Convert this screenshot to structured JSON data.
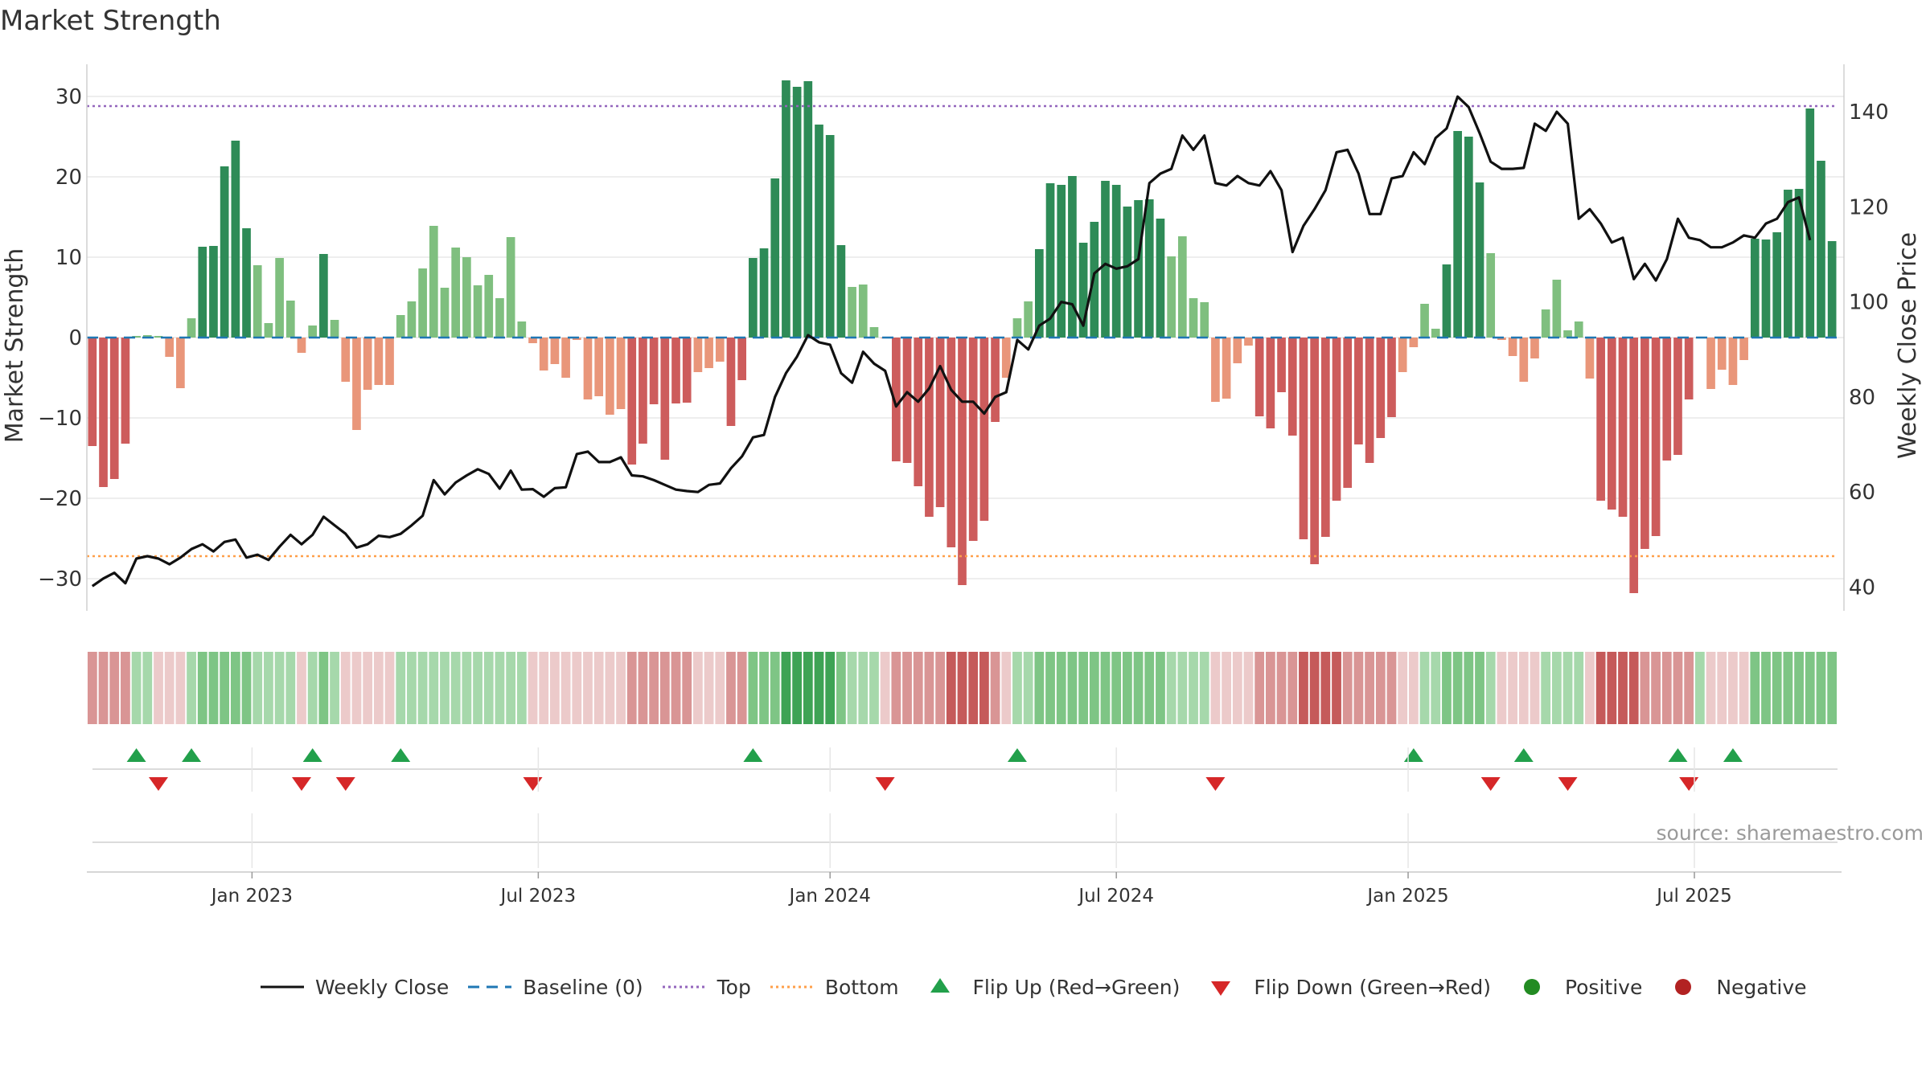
{
  "chart_data": {
    "type": "bar",
    "title": "Market Strength",
    "ylabel_left": "Market Strength",
    "ylabel_right": "Weekly Close Price",
    "ylim_left": [
      -34,
      34
    ],
    "ylim_right": [
      35,
      150
    ],
    "yticks_left": [
      -30,
      -20,
      -10,
      0,
      10,
      20,
      30
    ],
    "yticks_left_labels": [
      "−30",
      "−20",
      "−10",
      "0",
      "10",
      "20",
      "30"
    ],
    "yticks_right": [
      40,
      60,
      80,
      100,
      120,
      140
    ],
    "yticks_right_labels": [
      "40",
      "60",
      "80",
      "100",
      "120",
      "140"
    ],
    "top_level": 28.8,
    "bottom_level": -27.2,
    "baseline": 0,
    "x_ticks": [
      {
        "index": 14.5,
        "label": "Jan 2023"
      },
      {
        "index": 40.5,
        "label": "Jul 2023"
      },
      {
        "index": 67,
        "label": "Jan 2024"
      },
      {
        "index": 93,
        "label": "Jul 2024"
      },
      {
        "index": 119.5,
        "label": "Jan 2025"
      },
      {
        "index": 145.5,
        "label": "Jul 2025"
      }
    ],
    "strength": [
      -13.5,
      -18.6,
      -17.6,
      -13.2,
      0.2,
      0.3,
      0.2,
      -2.4,
      -6.3,
      2.4,
      11.3,
      11.4,
      21.3,
      24.5,
      13.6,
      9.0,
      1.8,
      9.9,
      4.6,
      -1.9,
      1.5,
      10.4,
      2.2,
      -5.5,
      -11.5,
      -6.5,
      -5.9,
      -5.9,
      2.8,
      4.5,
      8.6,
      13.9,
      6.2,
      11.2,
      10.0,
      6.5,
      7.8,
      4.9,
      12.5,
      2.0,
      -0.7,
      -4.1,
      -3.3,
      -5.0,
      -0.3,
      -7.7,
      -7.3,
      -9.6,
      -8.9,
      -15.8,
      -13.2,
      -8.3,
      -15.2,
      -8.2,
      -8.1,
      -4.3,
      -3.8,
      -3.0,
      -11.0,
      -5.3,
      9.9,
      11.1,
      19.8,
      32.0,
      31.2,
      31.9,
      26.5,
      25.2,
      11.5,
      6.3,
      6.6,
      1.3,
      -0.1,
      -15.4,
      -15.6,
      -18.5,
      -22.3,
      -21.1,
      -26.1,
      -30.8,
      -25.3,
      -22.8,
      -10.5,
      -5.0,
      2.4,
      4.5,
      11.0,
      19.2,
      19.0,
      20.1,
      11.8,
      14.4,
      19.5,
      19.0,
      16.3,
      17.1,
      17.2,
      14.8,
      10.1,
      12.6,
      4.9,
      4.4,
      -8.0,
      -7.6,
      -3.2,
      -1.0,
      -9.8,
      -11.3,
      -6.8,
      -12.2,
      -25.1,
      -28.2,
      -24.8,
      -20.3,
      -18.7,
      -13.3,
      -15.6,
      -12.5,
      -9.9,
      -4.3,
      -1.2,
      4.2,
      1.1,
      9.1,
      25.7,
      25.0,
      19.3,
      10.5,
      -0.3,
      -2.3,
      -5.5,
      -2.6,
      3.5,
      7.2,
      0.9,
      2.0,
      -5.1,
      -20.3,
      -21.4,
      -22.3,
      -31.8,
      -26.3,
      -24.7,
      -15.3,
      -14.6,
      -7.7,
      -0.1,
      -6.4,
      -4.0,
      -5.9,
      -2.8,
      12.3,
      12.2,
      13.1,
      18.4,
      18.5,
      28.5,
      22.0,
      12.0
    ],
    "weekly_close": [
      40.2,
      41.8,
      43.0,
      40.8,
      46.0,
      46.5,
      46.0,
      44.8,
      46.2,
      48.0,
      49.0,
      47.5,
      49.5,
      50.0,
      46.2,
      46.8,
      45.7,
      48.5,
      51.0,
      49.0,
      51.0,
      54.8,
      53.0,
      51.2,
      48.3,
      49.0,
      50.8,
      50.5,
      51.2,
      53.0,
      55.0,
      62.5,
      59.5,
      62.0,
      63.5,
      64.8,
      63.8,
      60.7,
      64.5,
      60.5,
      60.6,
      59.0,
      60.8,
      61.0,
      68.0,
      68.5,
      66.3,
      66.3,
      67.3,
      63.5,
      63.3,
      62.5,
      61.5,
      60.5,
      60.2,
      60.0,
      61.5,
      61.8,
      65.0,
      67.5,
      71.5,
      72.0,
      80.0,
      85.0,
      88.5,
      93.0,
      91.5,
      91.0,
      85.0,
      83.0,
      89.5,
      87.0,
      85.5,
      78.0,
      81.0,
      79.0,
      81.8,
      86.5,
      81.5,
      79.0,
      79.0,
      76.5,
      80.0,
      81.0,
      92.0,
      90.0,
      95.0,
      96.5,
      100.0,
      99.5,
      95.0,
      106.0,
      108.0,
      107.0,
      107.5,
      109.0,
      125.0,
      127.0,
      128.0,
      135.0,
      132.0,
      135.0,
      125.0,
      124.5,
      126.5,
      125.0,
      124.5,
      127.5,
      123.5,
      110.5,
      116.0,
      119.5,
      123.5,
      131.5,
      132.0,
      127.0,
      118.5,
      118.5,
      126.0,
      126.5,
      131.5,
      129.0,
      134.5,
      136.5,
      143.2,
      141.0,
      135.5,
      129.5,
      128.0,
      128.0,
      128.2,
      137.5,
      136.0,
      140.0,
      137.5,
      117.5,
      119.5,
      116.5,
      112.5,
      113.5,
      104.8,
      108.0,
      104.5,
      109.0,
      117.5,
      113.5,
      113.0,
      111.5,
      111.5,
      112.5,
      114.0,
      113.5,
      116.5,
      117.5,
      121.0,
      122.0,
      113.0
    ],
    "intensity_levels": [
      -2,
      -2,
      -2,
      -2,
      1,
      1,
      -1,
      -1,
      -1,
      1,
      2,
      2,
      2,
      2,
      2,
      1,
      1,
      1,
      1,
      -1,
      1,
      2,
      1,
      -1,
      -1,
      -1,
      -1,
      -1,
      1,
      1,
      1,
      1,
      1,
      1,
      1,
      1,
      1,
      1,
      1,
      1,
      -1,
      -1,
      -1,
      -1,
      -1,
      -1,
      -1,
      -1,
      -1,
      -2,
      -2,
      -2,
      -2,
      -2,
      -2,
      -1,
      -1,
      -1,
      -2,
      -2,
      2,
      2,
      2,
      3,
      3,
      3,
      3,
      3,
      2,
      1,
      1,
      1,
      -1,
      -2,
      -2,
      -2,
      -2,
      -2,
      -3,
      -3,
      -3,
      -3,
      -2,
      -1,
      1,
      1,
      2,
      2,
      2,
      2,
      2,
      2,
      2,
      2,
      2,
      2,
      2,
      2,
      1,
      1,
      1,
      1,
      -1,
      -1,
      -1,
      -1,
      -2,
      -2,
      -2,
      -2,
      -3,
      -3,
      -3,
      -3,
      -2,
      -2,
      -2,
      -2,
      -2,
      -1,
      -1,
      1,
      1,
      2,
      2,
      2,
      2,
      1,
      -1,
      -1,
      -1,
      -1,
      1,
      1,
      1,
      1,
      -1,
      -3,
      -3,
      -3,
      -3,
      -2,
      -2,
      -2,
      -2,
      -2,
      1,
      -1,
      -1,
      -1,
      -1,
      2,
      2,
      2,
      2,
      2,
      2,
      2,
      2
    ],
    "flips_up": [
      4,
      9,
      20,
      28,
      60,
      84,
      120,
      130,
      144,
      149
    ],
    "flips_down": [
      6,
      19,
      23,
      40,
      72,
      102,
      127,
      134,
      145
    ],
    "legend": [
      {
        "key": "close",
        "label": "Weekly Close"
      },
      {
        "key": "baseline",
        "label": "Baseline (0)"
      },
      {
        "key": "top",
        "label": "Top"
      },
      {
        "key": "bottom",
        "label": "Bottom"
      },
      {
        "key": "flip_up",
        "label": "Flip Up (Red→Green)"
      },
      {
        "key": "flip_down",
        "label": "Flip Down (Green→Red)"
      },
      {
        "key": "positive",
        "label": "Positive"
      },
      {
        "key": "negative",
        "label": "Negative"
      }
    ],
    "source": "source: sharemaestro.com"
  },
  "colors": {
    "pos_strong": "#2e8b57",
    "pos_weak": "#7fbf7f",
    "neg_strong": "#cd5c5c",
    "neg_weak": "#e9967a",
    "close_line": "#111111",
    "baseline": "#1f77b4",
    "top": "#9467bd",
    "bottom": "#ff9f4a",
    "flip_up": "#22a04b",
    "flip_down": "#d62728",
    "positive_dot": "#228b22",
    "negative_dot": "#b22222",
    "grid": "#e8e8e8",
    "axis": "#d0d0d0"
  }
}
